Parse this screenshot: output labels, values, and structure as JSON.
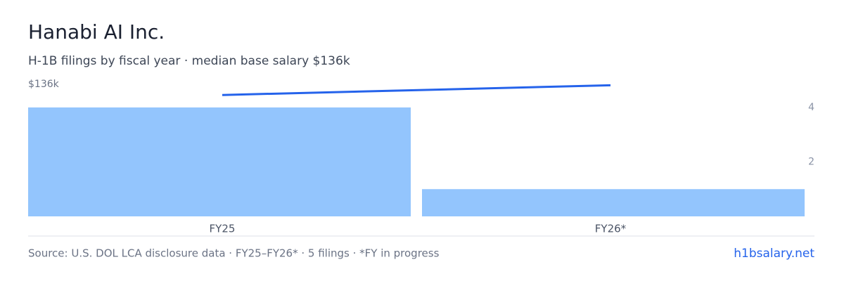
{
  "chart_data": {
    "type": "combo",
    "title": "Hanabi AI Inc.",
    "subtitle": "H-1B filings by fiscal year · median base salary $136k",
    "categories": [
      "FY25",
      "FY26*"
    ],
    "series": [
      {
        "type": "bar",
        "color": "#93c5fd",
        "values": [
          4,
          1
        ]
      },
      {
        "type": "line",
        "axis": "y2",
        "color": "#2563eb",
        "values": [
          125000,
          135000
        ]
      }
    ],
    "ylim": [
      0,
      4.85
    ],
    "yticks": [
      2,
      4
    ],
    "y2lim": [
      0,
      136000
    ],
    "y2ticks": [
      {
        "value": 136000,
        "label": "$136k"
      }
    ]
  },
  "footer": {
    "source": "Source: U.S. DOL LCA disclosure data · FY25–FY26* · 5 filings · *FY in progress",
    "brand": "h1bsalary.net"
  }
}
